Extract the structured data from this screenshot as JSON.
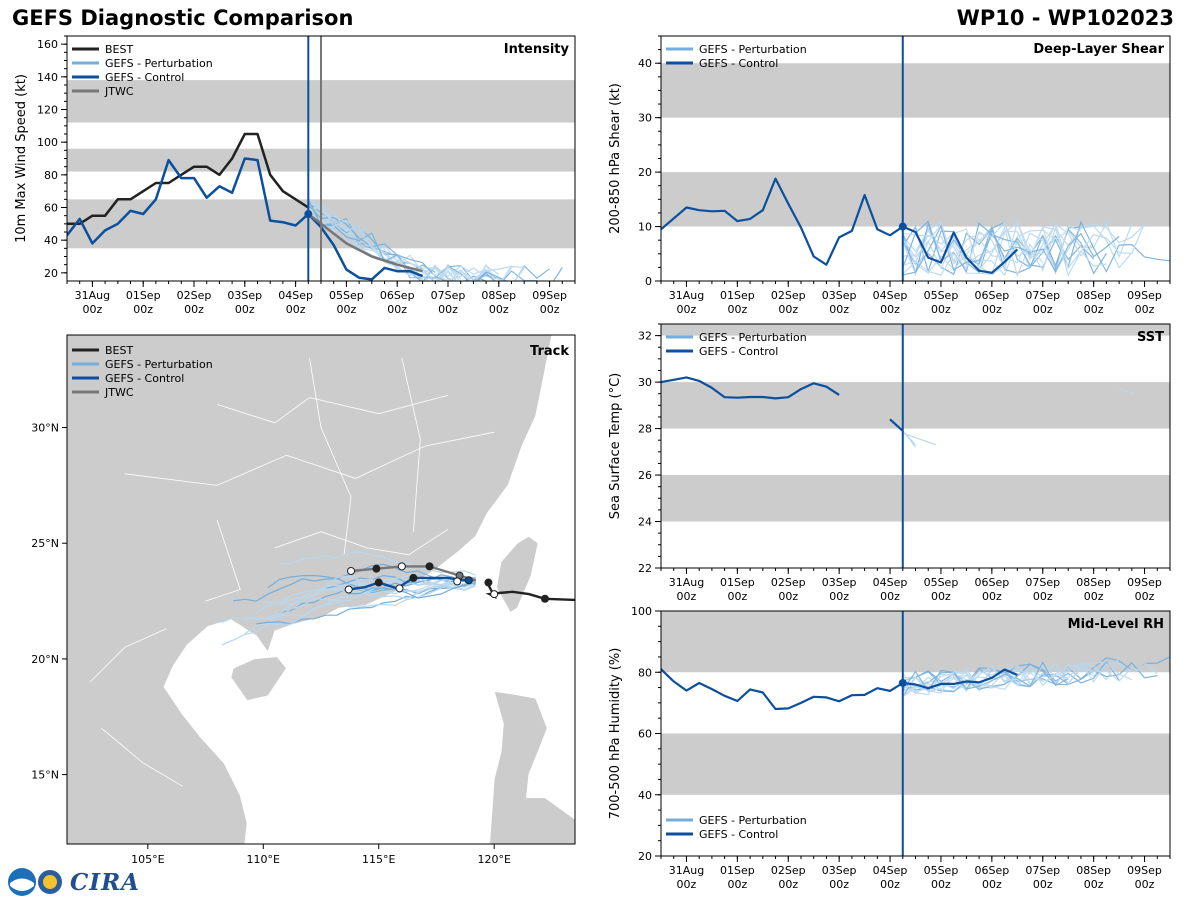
{
  "header": {
    "title_left": "GEFS Diagnostic Comparison",
    "title_right": "WP10 - WP102023"
  },
  "logo": {
    "text": "CIRA"
  },
  "colors": {
    "best": "#222222",
    "perturbation": "#74aedc",
    "perturbation_thin": "#b9d8ee",
    "control": "#0c4f9c",
    "jtwc": "#777777",
    "band": "#cccccc",
    "land": "#cccccc"
  },
  "time_ticks": {
    "labels": [
      "31Aug",
      "01Sep",
      "02Sep",
      "03Sep",
      "04Sep",
      "05Sep",
      "06Sep",
      "07Sep",
      "08Sep",
      "09Sep"
    ],
    "sublabel": "00z",
    "positions": [
      0,
      1,
      2,
      3,
      4,
      5,
      6,
      7,
      8,
      9
    ],
    "init_time": 4.25,
    "xlim": [
      -0.4,
      9.5
    ]
  },
  "chart_data": [
    {
      "name": "intensity",
      "type": "line",
      "title": "Intensity",
      "ylabel": "10m Max Wind Speed (kt)",
      "xlim": [
        -0.5,
        9.5
      ],
      "ylim": [
        15,
        165
      ],
      "yticks": [
        20,
        40,
        60,
        80,
        100,
        120,
        140,
        160
      ],
      "bands": [
        [
          35,
          65
        ],
        [
          82,
          96
        ],
        [
          112,
          138
        ]
      ],
      "legend": [
        "BEST",
        "GEFS - Perturbation",
        "GEFS - Control",
        "JTWC"
      ],
      "vlines": [
        4.25,
        4.5
      ],
      "series": [
        {
          "name": "BEST",
          "color": "#222222",
          "width": 2.5,
          "x": [
            -0.5,
            -0.25,
            0,
            0.25,
            0.5,
            0.75,
            1.0,
            1.25,
            1.5,
            1.75,
            2.0,
            2.25,
            2.5,
            2.75,
            3.0,
            3.25,
            3.5,
            3.75,
            4.0,
            4.25
          ],
          "y": [
            50,
            50,
            55,
            55,
            65,
            65,
            70,
            75,
            75,
            80,
            85,
            85,
            80,
            90,
            105,
            105,
            80,
            70,
            65,
            60
          ]
        },
        {
          "name": "GEFS - Control",
          "color": "#0c4f9c",
          "width": 2.5,
          "x": [
            -0.5,
            -0.25,
            0,
            0.25,
            0.5,
            0.75,
            1.0,
            1.25,
            1.5,
            1.75,
            2.0,
            2.25,
            2.5,
            2.75,
            3.0,
            3.25,
            3.5,
            3.75,
            4.0,
            4.25,
            4.5,
            4.75,
            5.0,
            5.25,
            5.5,
            5.75,
            6.0,
            6.25,
            6.5
          ],
          "y": [
            43,
            53,
            38,
            46,
            50,
            58,
            56,
            65,
            89,
            78,
            78,
            66,
            73,
            69,
            90,
            89,
            52,
            51,
            49,
            56,
            48,
            37,
            22,
            17,
            16,
            23,
            21,
            21,
            18
          ]
        },
        {
          "name": "JTWC",
          "color": "#777777",
          "width": 2.5,
          "x": [
            4.25,
            4.5,
            5.0,
            5.5,
            6.0,
            6.5
          ],
          "y": [
            56,
            50,
            38,
            30,
            25,
            21
          ]
        }
      ],
      "markers": [
        {
          "x": 4.25,
          "y": 56,
          "color": "#0c4f9c"
        }
      ]
    },
    {
      "name": "shear",
      "type": "line",
      "title": "Deep-Layer Shear",
      "ylabel": "200-850 hPa Shear (kt)",
      "xlim": [
        -0.5,
        9.5
      ],
      "ylim": [
        0,
        45
      ],
      "yticks": [
        0,
        10,
        20,
        30,
        40
      ],
      "bands": [
        [
          10,
          20
        ],
        [
          30,
          40
        ]
      ],
      "legend": [
        "GEFS - Perturbation",
        "GEFS - Control"
      ],
      "vlines": [
        4.25
      ],
      "series": [
        {
          "name": "GEFS - Control",
          "color": "#0c4f9c",
          "width": 2.2,
          "x": [
            -0.5,
            -0.25,
            0,
            0.25,
            0.5,
            0.75,
            1.0,
            1.25,
            1.5,
            1.75,
            2.0,
            2.25,
            2.5,
            2.75,
            3.0,
            3.25,
            3.5,
            3.75,
            4.0,
            4.25,
            4.5,
            4.75,
            5.0,
            5.25,
            5.5,
            5.75,
            6.0,
            6.25,
            6.5
          ],
          "y": [
            9.5,
            11.5,
            13.5,
            13,
            12.8,
            12.9,
            11,
            11.4,
            13,
            18.8,
            14.2,
            9.8,
            4.5,
            3,
            8,
            9.2,
            15.8,
            9.5,
            8.4,
            10,
            9,
            4.3,
            3.4,
            8.9,
            4.3,
            1.9,
            1.5,
            3.5,
            5.8
          ]
        }
      ],
      "markers": [
        {
          "x": 4.25,
          "y": 10,
          "color": "#0c4f9c"
        }
      ]
    },
    {
      "name": "sst",
      "type": "line",
      "title": "SST",
      "ylabel": "Sea Surface Temp (°C)",
      "xlim": [
        -0.5,
        9.5
      ],
      "ylim": [
        22,
        32.5
      ],
      "yticks": [
        22,
        24,
        26,
        28,
        30,
        32
      ],
      "bands": [
        [
          24,
          26
        ],
        [
          28,
          30
        ],
        [
          32,
          33
        ]
      ],
      "legend": [
        "GEFS - Perturbation",
        "GEFS - Control"
      ],
      "vlines": [
        4.25
      ],
      "series": [
        {
          "name": "GEFS - Control",
          "color": "#0c4f9c",
          "width": 2.2,
          "x": [
            -0.5,
            -0.25,
            0,
            0.25,
            0.5,
            0.75,
            1.0,
            1.25,
            1.5,
            1.75,
            2.0,
            2.25,
            2.5,
            2.75,
            3.0
          ],
          "y": [
            30,
            30.1,
            30.2,
            30.05,
            29.75,
            29.35,
            29.33,
            29.36,
            29.36,
            29.3,
            29.35,
            29.7,
            29.95,
            29.8,
            29.45
          ]
        },
        {
          "name": "GEFS - Control (late)",
          "color": "#0c4f9c",
          "width": 2.2,
          "x": [
            4.0,
            4.25
          ],
          "y": [
            28.4,
            27.9
          ]
        }
      ],
      "markers": []
    },
    {
      "name": "rh",
      "type": "line",
      "title": "Mid-Level RH",
      "ylabel": "700-500 hPa Humidity (%)",
      "xlim": [
        -0.5,
        9.5
      ],
      "ylim": [
        20,
        100
      ],
      "yticks": [
        20,
        40,
        60,
        80,
        100
      ],
      "bands": [
        [
          40,
          60
        ],
        [
          80,
          100
        ]
      ],
      "legend": [
        "GEFS - Perturbation",
        "GEFS - Control"
      ],
      "vlines": [
        4.25
      ],
      "series": [
        {
          "name": "GEFS - Control",
          "color": "#0c4f9c",
          "width": 2.2,
          "x": [
            -0.5,
            -0.25,
            0,
            0.25,
            0.5,
            0.75,
            1.0,
            1.25,
            1.5,
            1.75,
            2.0,
            2.25,
            2.5,
            2.75,
            3.0,
            3.25,
            3.5,
            3.75,
            4.0,
            4.25,
            4.5,
            4.75,
            5.0,
            5.25,
            5.5,
            5.75,
            6.0,
            6.25,
            6.5
          ],
          "y": [
            81,
            77,
            74,
            76.5,
            74.5,
            72.3,
            70.6,
            74.4,
            73.4,
            68,
            68.2,
            70,
            72,
            71.8,
            70.5,
            72.5,
            72.6,
            74.8,
            73.9,
            76.5,
            76,
            74.8,
            76.2,
            76.2,
            77,
            76.7,
            78.2,
            80.9,
            79.1
          ]
        }
      ],
      "markers": [
        {
          "x": 4.25,
          "y": 76.5,
          "color": "#0c4f9c"
        }
      ]
    },
    {
      "name": "track",
      "type": "scatter",
      "title": "Track",
      "xlim": [
        101.5,
        123.5
      ],
      "ylim": [
        12,
        34
      ],
      "xticks": [
        105,
        110,
        115,
        120
      ],
      "xtick_labels": [
        "105°E",
        "110°E",
        "115°E",
        "120°E"
      ],
      "yticks": [
        15,
        20,
        25,
        30
      ],
      "ytick_labels": [
        "15°N",
        "20°N",
        "25°N",
        "30°N"
      ],
      "legend": [
        "BEST",
        "GEFS - Perturbation",
        "GEFS - Control",
        "JTWC"
      ],
      "series": [
        {
          "name": "BEST",
          "color": "#222222",
          "lon": [
            123.5,
            122.2,
            121.5,
            120.8,
            120.2,
            119.8,
            120.0,
            119.7
          ],
          "lat": [
            22.55,
            22.6,
            22.8,
            22.9,
            22.85,
            22.8,
            22.7,
            23.3
          ]
        },
        {
          "name": "GEFS - Control",
          "color": "#0c4f9c",
          "lon": [
            119.2,
            118.6,
            118.0,
            117.4,
            116.5,
            115.8,
            115.0,
            114.4,
            113.7
          ],
          "lat": [
            23.4,
            23.4,
            23.5,
            23.5,
            23.5,
            23.05,
            23.3,
            23.1,
            23.0
          ]
        },
        {
          "name": "JTWC",
          "color": "#777777",
          "lon": [
            119.2,
            118.5,
            117.2,
            116.0,
            114.9,
            113.8
          ],
          "lat": [
            23.4,
            23.6,
            24.0,
            24.0,
            23.9,
            23.8
          ]
        }
      ],
      "markers": [
        {
          "lon": 122.2,
          "lat": 22.6,
          "fill": "#222222"
        },
        {
          "lon": 119.75,
          "lat": 23.3,
          "fill": "#222222"
        },
        {
          "lon": 120.0,
          "lat": 22.8,
          "fill": "#ffffff"
        },
        {
          "lon": 118.9,
          "lat": 23.4,
          "fill": "#0c4f9c"
        },
        {
          "lon": 116.5,
          "lat": 23.5,
          "fill": "#222222"
        },
        {
          "lon": 115.0,
          "lat": 23.3,
          "fill": "#222222"
        },
        {
          "lon": 115.9,
          "lat": 23.05,
          "fill": "#ffffff"
        },
        {
          "lon": 113.7,
          "lat": 23.0,
          "fill": "#ffffff"
        },
        {
          "lon": 118.5,
          "lat": 23.6,
          "fill": "#777777"
        },
        {
          "lon": 117.2,
          "lat": 24.0,
          "fill": "#222222"
        },
        {
          "lon": 114.9,
          "lat": 23.9,
          "fill": "#222222"
        },
        {
          "lon": 116.0,
          "lat": 24.0,
          "fill": "#ffffff"
        },
        {
          "lon": 113.8,
          "lat": 23.8,
          "fill": "#ffffff"
        },
        {
          "lon": 118.4,
          "lat": 23.35,
          "fill": "#ffffff"
        }
      ]
    }
  ]
}
